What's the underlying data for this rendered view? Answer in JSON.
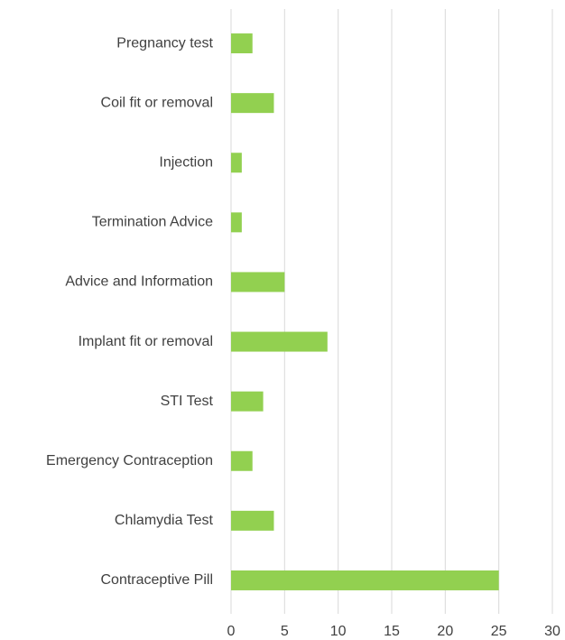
{
  "chart_data": {
    "type": "bar",
    "orientation": "horizontal",
    "categories": [
      "Pregnancy test",
      "Coil fit or removal",
      "Injection",
      "Termination Advice",
      "Advice and Information",
      "Implant fit or removal",
      "STI Test",
      "Emergency Contraception",
      "Chlamydia Test",
      "Contraceptive Pill"
    ],
    "values": [
      2,
      4,
      1,
      1,
      5,
      9,
      3,
      2,
      4,
      25
    ],
    "color": "#92d050",
    "xlim": [
      0,
      30
    ],
    "xticks": [
      0,
      5,
      10,
      15,
      20,
      25,
      30
    ],
    "grid": true
  }
}
